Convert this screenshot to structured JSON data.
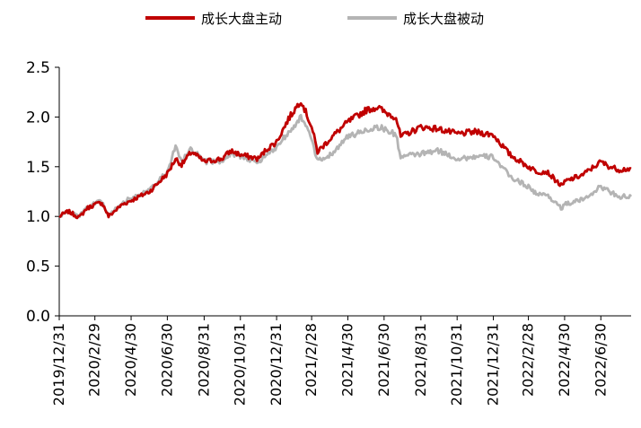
{
  "chart_data": {
    "type": "line",
    "title": "",
    "xlabel": "",
    "ylabel": "",
    "ylim": [
      0,
      2.5
    ],
    "yticks": [
      "0.0",
      "0.5",
      "1.0",
      "1.5",
      "2.0",
      "2.5"
    ],
    "xticks": [
      "2019/12/31",
      "2020/2/29",
      "2020/4/30",
      "2020/6/30",
      "2020/8/31",
      "2020/10/31",
      "2020/12/31",
      "2021/2/28",
      "2021/4/30",
      "2021/6/30",
      "2021/8/31",
      "2021/10/31",
      "2021/12/31",
      "2022/2/28",
      "2022/4/30",
      "2022/6/30"
    ],
    "grid": false,
    "legend": "top",
    "series": [
      {
        "name": "成长大盘主动",
        "color": "#c00000",
        "points": [
          [
            "2019/12/31",
            1.0
          ],
          [
            "2020/1/15",
            1.05
          ],
          [
            "2020/2/3",
            0.99
          ],
          [
            "2020/2/15",
            1.08
          ],
          [
            "2020/2/29",
            1.12
          ],
          [
            "2020/3/12",
            1.14
          ],
          [
            "2020/3/23",
            1.0
          ],
          [
            "2020/4/15",
            1.12
          ],
          [
            "2020/4/30",
            1.16
          ],
          [
            "2020/5/31",
            1.25
          ],
          [
            "2020/6/30",
            1.43
          ],
          [
            "2020/7/14",
            1.58
          ],
          [
            "2020/7/24",
            1.52
          ],
          [
            "2020/8/10",
            1.65
          ],
          [
            "2020/8/31",
            1.55
          ],
          [
            "2020/9/30",
            1.58
          ],
          [
            "2020/10/15",
            1.66
          ],
          [
            "2020/10/31",
            1.62
          ],
          [
            "2020/11/30",
            1.58
          ],
          [
            "2020/12/15",
            1.68
          ],
          [
            "2020/12/31",
            1.75
          ],
          [
            "2021/1/20",
            1.98
          ],
          [
            "2021/2/10",
            2.17
          ],
          [
            "2021/2/28",
            1.9
          ],
          [
            "2021/3/10",
            1.65
          ],
          [
            "2021/3/31",
            1.78
          ],
          [
            "2021/4/30",
            1.95
          ],
          [
            "2021/5/31",
            2.07
          ],
          [
            "2021/6/20",
            2.1
          ],
          [
            "2021/6/30",
            2.05
          ],
          [
            "2021/7/20",
            2.0
          ],
          [
            "2021/7/28",
            1.8
          ],
          [
            "2021/8/31",
            1.9
          ],
          [
            "2021/9/30",
            1.88
          ],
          [
            "2021/10/31",
            1.83
          ],
          [
            "2021/11/30",
            1.85
          ],
          [
            "2021/12/31",
            1.82
          ],
          [
            "2022/1/28",
            1.62
          ],
          [
            "2022/2/28",
            1.5
          ],
          [
            "2022/3/15",
            1.45
          ],
          [
            "2022/3/31",
            1.45
          ],
          [
            "2022/4/26",
            1.3
          ],
          [
            "2022/4/30",
            1.35
          ],
          [
            "2022/5/31",
            1.42
          ],
          [
            "2022/6/30",
            1.55
          ],
          [
            "2022/7/15",
            1.5
          ],
          [
            "2022/7/31",
            1.47
          ],
          [
            "2022/8/20",
            1.48
          ]
        ]
      },
      {
        "name": "成长大盘被动",
        "color": "#b4b4b4",
        "points": [
          [
            "2019/12/31",
            1.0
          ],
          [
            "2020/1/15",
            1.05
          ],
          [
            "2020/2/3",
            1.0
          ],
          [
            "2020/2/15",
            1.08
          ],
          [
            "2020/2/29",
            1.13
          ],
          [
            "2020/3/12",
            1.15
          ],
          [
            "2020/3/23",
            1.0
          ],
          [
            "2020/4/15",
            1.14
          ],
          [
            "2020/4/30",
            1.18
          ],
          [
            "2020/5/31",
            1.26
          ],
          [
            "2020/6/30",
            1.45
          ],
          [
            "2020/7/14",
            1.7
          ],
          [
            "2020/7/24",
            1.55
          ],
          [
            "2020/8/10",
            1.68
          ],
          [
            "2020/8/31",
            1.55
          ],
          [
            "2020/9/30",
            1.56
          ],
          [
            "2020/10/15",
            1.64
          ],
          [
            "2020/10/31",
            1.6
          ],
          [
            "2020/11/30",
            1.55
          ],
          [
            "2020/12/15",
            1.62
          ],
          [
            "2020/12/31",
            1.7
          ],
          [
            "2021/1/20",
            1.85
          ],
          [
            "2021/2/10",
            2.0
          ],
          [
            "2021/2/28",
            1.78
          ],
          [
            "2021/3/10",
            1.55
          ],
          [
            "2021/3/31",
            1.62
          ],
          [
            "2021/4/30",
            1.8
          ],
          [
            "2021/5/31",
            1.87
          ],
          [
            "2021/6/20",
            1.9
          ],
          [
            "2021/6/30",
            1.88
          ],
          [
            "2021/7/20",
            1.82
          ],
          [
            "2021/7/28",
            1.6
          ],
          [
            "2021/8/31",
            1.63
          ],
          [
            "2021/9/30",
            1.66
          ],
          [
            "2021/10/31",
            1.58
          ],
          [
            "2021/11/30",
            1.6
          ],
          [
            "2021/12/31",
            1.6
          ],
          [
            "2022/1/28",
            1.4
          ],
          [
            "2022/2/28",
            1.3
          ],
          [
            "2022/3/15",
            1.22
          ],
          [
            "2022/3/31",
            1.22
          ],
          [
            "2022/4/26",
            1.08
          ],
          [
            "2022/4/30",
            1.12
          ],
          [
            "2022/5/31",
            1.17
          ],
          [
            "2022/6/30",
            1.3
          ],
          [
            "2022/7/15",
            1.25
          ],
          [
            "2022/7/31",
            1.2
          ],
          [
            "2022/8/20",
            1.2
          ]
        ]
      }
    ]
  }
}
